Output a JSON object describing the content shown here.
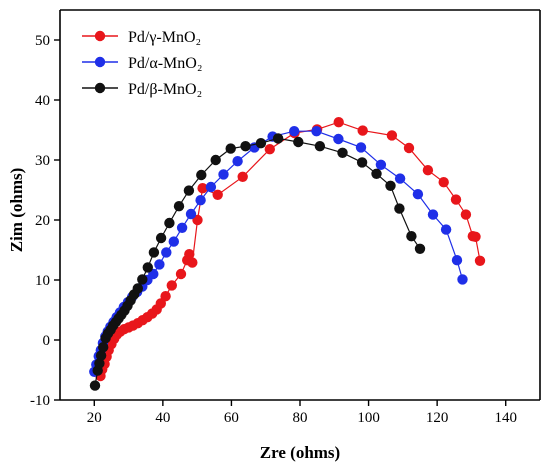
{
  "chart_data": {
    "type": "scatter",
    "xlabel": "Zre (ohms)",
    "ylabel": "Zim (ohms)",
    "xlim": [
      10,
      150
    ],
    "ylim": [
      -10,
      55
    ],
    "xticks": [
      "20",
      "40",
      "60",
      "80",
      "100",
      "120",
      "140"
    ],
    "yticks": [
      "-10",
      "0",
      "10",
      "20",
      "30",
      "40",
      "50"
    ],
    "xtick_values": [
      20,
      40,
      60,
      80,
      100,
      120,
      140
    ],
    "ytick_values": [
      -10,
      0,
      10,
      20,
      30,
      40,
      50
    ],
    "grid": false,
    "legend_position": "top-left",
    "series": [
      {
        "name": "Pd/γ-MnO₂",
        "color": "#e8161b",
        "x": [
          21.8,
          22.3,
          23.0,
          23.6,
          24.2,
          25.0,
          25.8,
          26.6,
          27.6,
          28.7,
          30.0,
          31.3,
          32.7,
          34.1,
          35.5,
          36.9,
          38.2,
          39.4,
          40.8,
          42.6,
          45.3,
          47.1,
          47.7,
          48.6,
          50.1,
          51.6,
          56.0,
          63.3,
          71.2,
          78.4,
          85.0,
          91.3,
          98.3,
          106.8,
          111.8,
          117.3,
          121.9,
          125.5,
          128.4,
          130.4,
          131.2,
          132.5
        ],
        "y": [
          -6.0,
          -4.9,
          -4.0,
          -2.8,
          -1.7,
          -0.7,
          0.2,
          0.9,
          1.4,
          1.8,
          2.1,
          2.4,
          2.8,
          3.3,
          3.8,
          4.4,
          5.1,
          6.1,
          7.3,
          9.1,
          11.0,
          13.3,
          14.3,
          12.9,
          20.0,
          25.3,
          24.2,
          27.2,
          31.8,
          34.5,
          35.1,
          36.3,
          34.9,
          34.1,
          32.0,
          28.3,
          26.3,
          23.4,
          20.9,
          17.3,
          17.2,
          13.2
        ]
      },
      {
        "name": "Pd/α-MnO₂",
        "color": "#1f2fe8",
        "x": [
          20.0,
          20.6,
          21.3,
          21.9,
          22.5,
          23.2,
          23.9,
          24.7,
          25.6,
          26.5,
          27.5,
          28.6,
          29.8,
          31.1,
          32.5,
          34.0,
          35.5,
          37.2,
          39.0,
          41.0,
          43.2,
          45.6,
          48.2,
          51.0,
          54.0,
          57.7,
          61.8,
          66.7,
          72.0,
          78.3,
          84.8,
          91.2,
          97.8,
          103.6,
          109.2,
          114.4,
          118.8,
          122.6,
          125.8,
          127.4
        ],
        "y": [
          -5.3,
          -4.1,
          -2.7,
          -1.7,
          -0.5,
          0.6,
          1.4,
          2.2,
          3.0,
          3.8,
          4.6,
          5.5,
          6.3,
          7.2,
          8.0,
          8.9,
          10.0,
          11.0,
          12.6,
          14.6,
          16.4,
          18.7,
          21.0,
          23.3,
          25.5,
          27.6,
          29.8,
          32.1,
          33.9,
          34.8,
          34.8,
          33.5,
          32.1,
          29.2,
          26.9,
          24.3,
          20.9,
          18.4,
          13.3,
          10.1
        ]
      },
      {
        "name": "Pd/β-MnO₂",
        "color": "#111111",
        "x": [
          20.2,
          21.0,
          21.5,
          22.0,
          22.6,
          23.3,
          24.0,
          24.8,
          25.5,
          26.3,
          27.1,
          27.9,
          28.8,
          29.7,
          30.6,
          31.6,
          32.7,
          34.0,
          35.6,
          37.4,
          39.5,
          41.9,
          44.7,
          47.6,
          51.2,
          55.4,
          59.8,
          64.1,
          68.6,
          73.6,
          79.5,
          85.8,
          92.4,
          98.1,
          102.3,
          106.4,
          109.0,
          112.5,
          115.0
        ],
        "y": [
          -7.6,
          -5.1,
          -3.9,
          -2.6,
          -1.2,
          0.3,
          1.1,
          1.7,
          2.4,
          3.0,
          3.6,
          4.2,
          4.9,
          5.7,
          6.6,
          7.6,
          8.6,
          10.1,
          12.1,
          14.6,
          17.0,
          19.5,
          22.3,
          24.9,
          27.5,
          30.0,
          31.9,
          32.3,
          32.8,
          33.6,
          33.0,
          32.3,
          31.2,
          29.6,
          27.7,
          25.7,
          21.9,
          17.3,
          15.2
        ]
      }
    ]
  }
}
